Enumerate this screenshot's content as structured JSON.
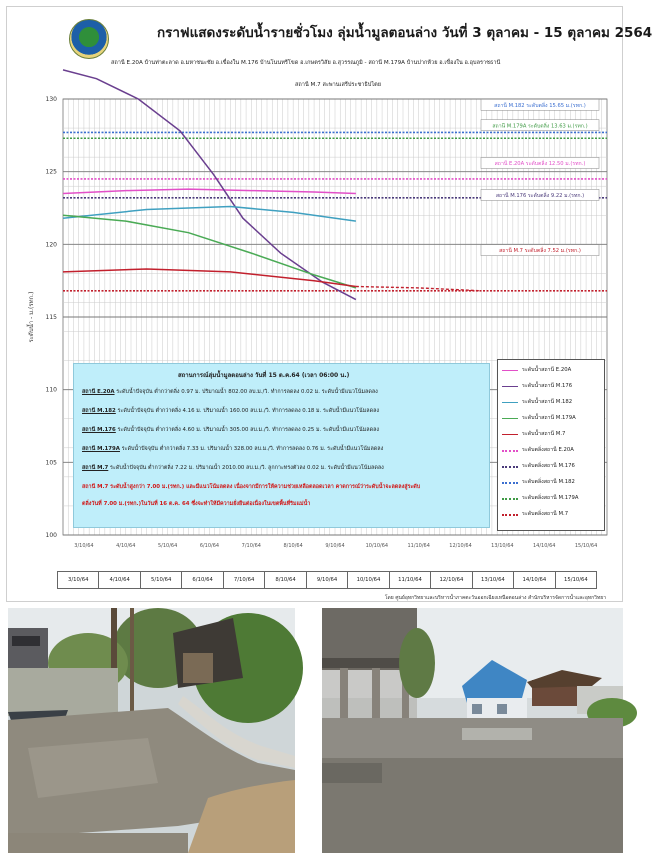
{
  "header": {
    "title": "กราฟแสดงระดับน้ำรายชั่วโมง ลุ่มน้ำมูลตอนล่าง วันที่ 3 ตุลาคม - 15 ตุลาคม 2564",
    "subtitle_line1": "สถานี E.20A บ้านท่าตะลาด อ.มหาชนะชัย อ.เขื่องใน M.176 บ้านโนนทรีโขด อ.เกษตรวิสัย อ.สุวรรณภูมิ - สถานี M.179A บ้านปากห้วย อ.เขื่องใน อ.อุบลราชธานี",
    "subtitle_line2": "สถานี M.7 สะพานเสรีประชาธิปไตย"
  },
  "chart_data": {
    "type": "line",
    "ylabel": "ระดับน้ำ - ม.(รทก.)",
    "ylim": [
      100,
      130
    ],
    "ytick_labels": [
      "100",
      "105",
      "110",
      "115",
      "120",
      "125",
      "130"
    ],
    "y_minor_step": 2,
    "grid": true,
    "x_dates": [
      "3/10/64",
      "4/10/64",
      "5/10/64",
      "6/10/64",
      "7/10/64",
      "8/10/64",
      "9/10/64",
      "10/10/64",
      "11/10/64",
      "12/10/64",
      "13/10/64",
      "14/10/64",
      "15/10/64"
    ],
    "x_range": [
      0,
      13
    ],
    "series": [
      {
        "name": "ระดับน้ำสถานี E.20A",
        "color": "#e24fc8",
        "style": "solid",
        "points": [
          [
            0,
            123.5
          ],
          [
            1.5,
            123.7
          ],
          [
            3,
            123.8
          ],
          [
            4.5,
            123.7
          ],
          [
            6,
            123.6
          ],
          [
            7,
            123.5
          ]
        ]
      },
      {
        "name": "ระดับน้ำสถานี M.176",
        "color": "#6a3f8f",
        "style": "solid",
        "points": [
          [
            0,
            132.0
          ],
          [
            0.8,
            131.4
          ],
          [
            1.8,
            130.0
          ],
          [
            2.8,
            127.8
          ],
          [
            3.6,
            124.8
          ],
          [
            4.3,
            121.8
          ],
          [
            5.2,
            119.4
          ],
          [
            6.2,
            117.4
          ],
          [
            7,
            116.2
          ]
        ]
      },
      {
        "name": "ระดับน้ำสถานี M.182",
        "color": "#3fa0c0",
        "style": "solid",
        "points": [
          [
            0,
            121.8
          ],
          [
            2,
            122.4
          ],
          [
            4,
            122.6
          ],
          [
            5.5,
            122.2
          ],
          [
            7,
            121.6
          ]
        ]
      },
      {
        "name": "ระดับน้ำสถานี M.179A",
        "color": "#4aaa55",
        "style": "solid",
        "points": [
          [
            0,
            122.0
          ],
          [
            1.5,
            121.6
          ],
          [
            3,
            120.8
          ],
          [
            4.5,
            119.4
          ],
          [
            6,
            117.9
          ],
          [
            7,
            117.0
          ]
        ]
      },
      {
        "name": "ระดับน้ำสถานี M.7",
        "color": "#c2202d",
        "style": "solid",
        "points": [
          [
            0,
            118.1
          ],
          [
            2,
            118.3
          ],
          [
            4,
            118.1
          ],
          [
            6,
            117.5
          ],
          [
            7,
            117.1
          ]
        ]
      },
      {
        "name": "ระดับตลิ่งสถานี E.20A",
        "color": "#e24fc8",
        "style": "dotted",
        "level": 124.5
      },
      {
        "name": "ระดับตลิ่งสถานี M.176",
        "color": "#4a3a7a",
        "style": "dotted",
        "level": 123.2
      },
      {
        "name": "ระดับตลิ่งสถานี M.182",
        "color": "#3b6fd0",
        "style": "dotted",
        "level": 127.7
      },
      {
        "name": "ระดับตลิ่งสถานี M.179A",
        "color": "#3f9a45",
        "style": "dotted",
        "level": 127.3
      },
      {
        "name": "ระดับตลิ่งสถานี M.7",
        "color": "#c2202d",
        "style": "dotted",
        "level": 116.8
      }
    ],
    "forecast_segment": {
      "color": "#c2202d",
      "points": [
        [
          7,
          117.1
        ],
        [
          8.5,
          117.0
        ],
        [
          10,
          116.8
        ]
      ]
    },
    "annotations": [
      {
        "text": "สถานี M.182 ระดับตลิ่ง 15.65 ม.(รทก.)",
        "color": "#3b6fd0",
        "y": 129.6
      },
      {
        "text": "สถานี M.179A ระดับตลิ่ง 13.63 ม.(รทก.)",
        "color": "#3f9a45",
        "y": 128.2
      },
      {
        "text": "สถานี E.20A ระดับตลิ่ง 12.50 ม.(รทก.)",
        "color": "#e24fc8",
        "y": 125.6
      },
      {
        "text": "สถานี M.176 ระดับตลิ่ง 9.22 ม.(รทก.)",
        "color": "#4a3a7a",
        "y": 123.4
      },
      {
        "text": "สถานี M.7 ระดับตลิ่ง 7.52 ม.(รทก.)",
        "color": "#c2202d",
        "y": 119.6
      }
    ]
  },
  "info_box": {
    "title": "สถานการณ์ลุ่มน้ำมูลตอนล่าง วันที่ 15 ต.ค.64 (เวลา 06:00 น.)",
    "lines": [
      {
        "station": "สถานี E.20A",
        "text": "ระดับน้ำปัจจุบัน ต่ำกว่าตลิ่ง 0.97 ม. ปริมาณน้ำ 802.00 ลบ.ม./วิ. ทำการลดลง 0.02 ม. ระดับน้ำมีแนวโน้มลดลง"
      },
      {
        "station": "สถานี M.182",
        "text": "ระดับน้ำปัจจุบัน ต่ำกว่าตลิ่ง 4.16 ม. ปริมาณน้ำ 160.00 ลบ.ม./วิ. ทำการลดลง 0.18 ม. ระดับน้ำมีแนวโน้มลดลง"
      },
      {
        "station": "สถานี M.176",
        "text": "ระดับน้ำปัจจุบัน ต่ำกว่าตลิ่ง 4.60 ม. ปริมาณน้ำ 305.00 ลบ.ม./วิ. ทำการลดลง 0.25 ม. ระดับน้ำมีแนวโน้มลดลง"
      },
      {
        "station": "สถานี M.179A",
        "text": "ระดับน้ำปัจจุบัน ต่ำกว่าตลิ่ง 7.33 ม. ปริมาณน้ำ 328.00 ลบ.ม./วิ. ทำการลดลง 0.76 ม. ระดับน้ำมีแนวโน้มลดลง"
      },
      {
        "station": "สถานี M.7",
        "text": "ระดับน้ำปัจจุบัน ต่ำกว่าตลิ่ง 7.22 ม. ปริมาณน้ำ 2010.00 ลบ.ม./วิ. ลูกกาะทรงตัวลง 0.02 ม. ระดับน้ำมีแนวโน้มลดลง"
      }
    ],
    "warning_line1": "สถานี M.7 ระดับน้ำสูงกว่า 7.00 ม.(รทก.) และมีแนวโน้มลดลง เนื่องจากมีการให้ความช่วยเหลือตลอดเวลา คาดการณ์ว่าระดับน้ำจะลดลงสู่ระดับ",
    "warning_line2": "ตลิ่งวันที่ 7.00 ม.(รทก.)ในวันที่ 16 ต.ค. 64 ซึ่งจะทำให้มีความยั่งยืนต่อเนื่องในเขตพื้นที่ริมแม่น้ำ"
  },
  "dates": [
    "3/10/64",
    "4/10/64",
    "5/10/64",
    "6/10/64",
    "7/10/64",
    "8/10/64",
    "9/10/64",
    "10/10/64",
    "11/10/64",
    "12/10/64",
    "13/10/64",
    "14/10/64",
    "15/10/64"
  ],
  "source": "โดย ศูนย์อุทกวิทยาและบริหารน้ำภาคตะวันออกเฉียงเหนือตอนล่าง สำนักบริหารจัดการน้ำและอุทกวิทยา"
}
